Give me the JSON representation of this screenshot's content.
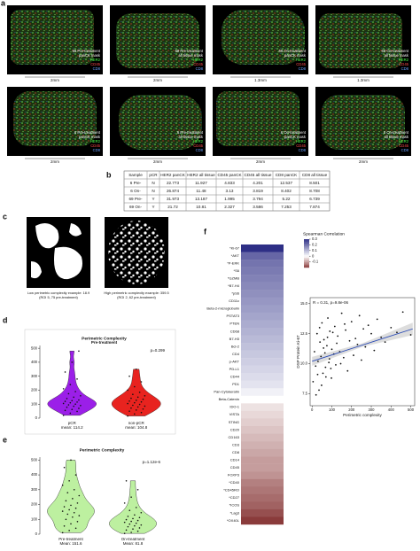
{
  "panel_a": {
    "label": "a",
    "channels": [
      "HER2",
      "CD45",
      "CD8"
    ],
    "images": [
      {
        "title": "69 Pre-treatment",
        "mask": "panCK mask",
        "scale": "2mm"
      },
      {
        "title": "69 Pre-treatment",
        "mask": "all tissue mask",
        "scale": "2mm"
      },
      {
        "title": "69 On-treatment",
        "mask": "panCK mask",
        "scale": "1.3mm"
      },
      {
        "title": "69 On-treatment",
        "mask": "all tissue mask",
        "scale": "1.3mm"
      },
      {
        "title": "6 Pre-treatment",
        "mask": "panCK mask",
        "scale": "2mm"
      },
      {
        "title": "6 Pre-treatment",
        "mask": "all tissue mask",
        "scale": "2mm"
      },
      {
        "title": "6 On-treatment",
        "mask": "panCK mask",
        "scale": "2mm"
      },
      {
        "title": "6 On-treatment",
        "mask": "all tissue mask",
        "scale": "2mm"
      }
    ]
  },
  "panel_b": {
    "label": "b",
    "table": {
      "header": [
        "Sample",
        "pCR",
        "HER2 panCK",
        "HER2 all tissue",
        "CD45 panCK",
        "CD45 all tissue",
        "CD8 panCK",
        "CD8 all tissue"
      ],
      "rows": [
        [
          "6 Pre-",
          "N",
          "22.773",
          "11.927",
          "4.833",
          "4.201",
          "12.537",
          "8.501"
        ],
        [
          "6 On-",
          "N",
          "26.874",
          "11.48",
          "3.13",
          "3.819",
          "8.402",
          "8.708"
        ],
        [
          "69 Pre-",
          "Y",
          "31.973",
          "13.187",
          "1.995",
          "3.794",
          "5.22",
          "6.739"
        ],
        [
          "69 On-",
          "Y",
          "21.72",
          "10.81",
          "2.327",
          "3.586",
          "7.253",
          "7.874"
        ]
      ]
    }
  },
  "panel_c": {
    "label": "c",
    "examples": [
      {
        "caption": "Low perimetric complexity example: 18.9",
        "roi": "(ROI 5, 75 pre-treatment)"
      },
      {
        "caption": "High perimetric complexity example: 359.5",
        "roi": "(ROI 2, 62 pre-treatment)"
      }
    ]
  },
  "panel_d": {
    "label": "d",
    "chart_data": {
      "type": "violin",
      "title": "Perimetric Complexity",
      "subtitle": "Pre-treatment",
      "annotation": "p=0.299",
      "ylim": [
        0,
        520
      ],
      "yticks": [
        0,
        100,
        200,
        300,
        400,
        500
      ],
      "series": [
        {
          "name": "pCR",
          "note": "mean: 114.2",
          "color": "#9b1fe8",
          "values": [
            20,
            35,
            48,
            55,
            62,
            70,
            78,
            85,
            90,
            95,
            100,
            105,
            110,
            115,
            120,
            125,
            130,
            140,
            150,
            160,
            175,
            190,
            210,
            240,
            280,
            330,
            400,
            480
          ]
        },
        {
          "name": "non-pCR",
          "note": "mean: 104.8",
          "color": "#e8231f",
          "values": [
            15,
            30,
            40,
            50,
            58,
            65,
            72,
            80,
            86,
            92,
            98,
            104,
            110,
            116,
            122,
            128,
            135,
            142,
            150,
            160,
            170,
            185,
            200,
            225,
            260,
            300,
            350
          ]
        }
      ]
    }
  },
  "panel_e": {
    "label": "e",
    "chart_data": {
      "type": "violin",
      "title": "Perimetric Complexity",
      "annotation": "p=1.12e-6",
      "ylim": [
        0,
        520
      ],
      "yticks": [
        0,
        100,
        200,
        300,
        400,
        500
      ],
      "series": [
        {
          "name": "Pre-treatment",
          "note": "Mean: 151.6",
          "color": "#bdf0a0",
          "values": [
            10,
            25,
            40,
            55,
            70,
            85,
            100,
            115,
            125,
            135,
            145,
            155,
            165,
            175,
            185,
            195,
            210,
            225,
            240,
            260,
            280,
            300,
            330,
            360,
            400,
            450,
            500
          ]
        },
        {
          "name": "On-treatment",
          "note": "Mean: 81.8",
          "color": "#bdf0a0",
          "values": [
            5,
            12,
            20,
            28,
            35,
            42,
            50,
            56,
            62,
            68,
            74,
            80,
            86,
            92,
            98,
            105,
            112,
            120,
            130,
            145,
            160,
            180,
            210,
            250,
            300,
            360
          ]
        }
      ]
    }
  },
  "panel_f": {
    "label": "f",
    "heatmap": {
      "type": "heatmap",
      "legend_title": "Spearman Correlation",
      "color_range": [
        -0.2,
        0.3
      ],
      "colors": {
        "low": "#8a3b3b",
        "mid": "#ffffff",
        "high": "#2e2f86"
      },
      "legend_ticks": [
        0.3,
        0.2,
        0.1,
        0,
        -0.1
      ],
      "categories": [
        "*Ki-67",
        "*AKT",
        "*P-ERK",
        "*S6",
        "*GZMB",
        "*B7-H4",
        "*pS6",
        "CD11c",
        "Beta-2-microglobulin",
        "PSTAT3",
        "PTEN",
        "CD68",
        "B7-H3",
        "Bcl-2",
        "CD4",
        "p-AKT",
        "PD-L1",
        "CD44",
        "PD1",
        "Pan-Cytokeratin",
        "Beta-Catenin",
        "IDO-1",
        "VISTA",
        "STING",
        "CD20",
        "CD163",
        "CD3",
        "CD8",
        "CD14",
        "CD45",
        "FOXP3",
        "*CD40",
        "*CD45RO",
        "*CD27",
        "*ICOS",
        "*Lag3",
        "*OX40L"
      ],
      "values": [
        0.31,
        0.22,
        0.2,
        0.19,
        0.18,
        0.17,
        0.16,
        0.15,
        0.14,
        0.13,
        0.12,
        0.11,
        0.1,
        0.09,
        0.08,
        0.07,
        0.06,
        0.05,
        0.04,
        0.02,
        0,
        -0.03,
        -0.04,
        -0.05,
        -0.06,
        -0.07,
        -0.08,
        -0.09,
        -0.1,
        -0.1,
        -0.11,
        -0.13,
        -0.14,
        -0.15,
        -0.16,
        -0.18,
        -0.2
      ]
    },
    "chart_data": {
      "type": "scatter",
      "annotation": "R = 0.31, p=9.8e-06",
      "x_label": "Perimetric complexity",
      "y_label": "DSP Protein Ki-67",
      "xlim": [
        -10,
        520
      ],
      "xticks": [
        0,
        100,
        200,
        300,
        400,
        500
      ],
      "ylim": [
        6.5,
        15.5
      ],
      "yticks": [
        7.5,
        {
          "value": 10,
          "label": "10.0"
        },
        12.5,
        {
          "value": 15,
          "label": "15.0"
        }
      ],
      "color": "#111111",
      "trend_color": "#2b4bb5",
      "trend_line": {
        "x": [
          0,
          510
        ],
        "y": [
          10.2,
          12.9
        ]
      },
      "x": [
        5,
        12,
        18,
        25,
        30,
        35,
        40,
        45,
        50,
        55,
        60,
        65,
        70,
        75,
        80,
        85,
        90,
        95,
        100,
        110,
        115,
        120,
        130,
        140,
        150,
        160,
        170,
        180,
        190,
        200,
        210,
        220,
        230,
        240,
        250,
        260,
        270,
        285,
        300,
        315,
        330,
        350,
        370,
        400,
        430,
        460,
        500,
        20,
        28,
        38,
        48,
        58,
        68,
        78,
        88,
        98,
        105,
        125,
        145,
        165
      ],
      "y": [
        8.5,
        11.0,
        9.8,
        12.5,
        10.2,
        7.8,
        11.8,
        10.6,
        13.4,
        9.2,
        12.0,
        10.9,
        8.9,
        11.5,
        13.8,
        10.1,
        12.7,
        9.6,
        11.2,
        10.8,
        13.1,
        9.9,
        12.3,
        11.0,
        14.2,
        10.5,
        12.8,
        9.4,
        11.9,
        13.5,
        10.7,
        12.1,
        11.6,
        14.0,
        10.3,
        12.9,
        11.4,
        13.2,
        12.5,
        11.1,
        13.7,
        12.2,
        11.8,
        13.0,
        12.6,
        14.3,
        12.4,
        7.4,
        9.1,
        13.0,
        8.2,
        11.3,
        9.7,
        12.2,
        10.4,
        8.8,
        12.6,
        11.7,
        10.0,
        13.3
      ]
    }
  }
}
